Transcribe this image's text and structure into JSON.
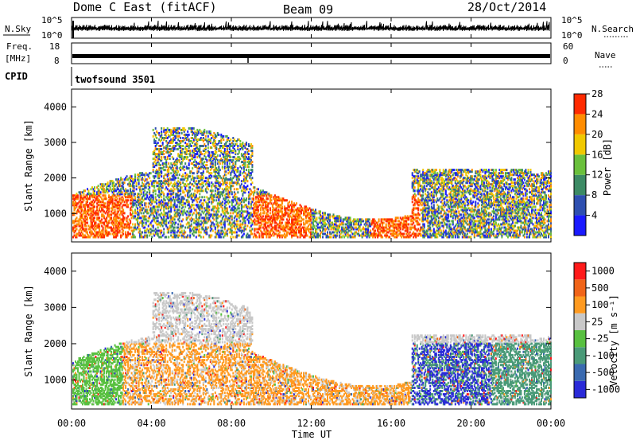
{
  "header": {
    "title": "Dome C East (fitACF)",
    "beam": "Beam 09",
    "date": "28/Oct/2014"
  },
  "top_panels": {
    "nsky_label": "N.Sky",
    "nsky_ticks": [
      "10^5",
      "10^0"
    ],
    "nsearch_ticks": [
      "10^5",
      "10^0"
    ],
    "nsearch_label": "N.Search",
    "freq_label": "Freq.",
    "freq_unit": "[MHz]",
    "freq_ticks": [
      "18",
      "8"
    ],
    "nave_ticks": [
      "60",
      "0"
    ],
    "nave_label": "Nave",
    "cpid_label": "CPID",
    "cpid_value": "twofsound 3501"
  },
  "chart_data": [
    {
      "type": "heatmap",
      "name": "power",
      "ylabel": "Slant Range [km]",
      "xlabel": "",
      "yticks": [
        1000,
        2000,
        3000,
        4000
      ],
      "ylim": [
        200,
        4500
      ],
      "xlim_hours": [
        0,
        24
      ],
      "colorbar_label": "Power [dB]",
      "colorbar_ticks": [
        "4",
        "8",
        "12",
        "16",
        "20",
        "24",
        "28"
      ],
      "colors": [
        "#1a1aff",
        "#2e4fb0",
        "#3c8a64",
        "#6ac03c",
        "#f0c800",
        "#ff8c00",
        "#ff2a00"
      ]
    },
    {
      "type": "heatmap",
      "name": "velocity",
      "ylabel": "Slant Range [km]",
      "xlabel": "Time UT",
      "yticks": [
        1000,
        2000,
        3000,
        4000
      ],
      "ylim": [
        200,
        4500
      ],
      "xlim_hours": [
        0,
        24
      ],
      "xticks": [
        "00:00",
        "04:00",
        "08:00",
        "12:00",
        "16:00",
        "20:00",
        "00:00"
      ],
      "colorbar_label": "Velocity [m s⁻¹]",
      "colorbar_ticks": [
        "1000",
        "500",
        "100",
        "25",
        "-25",
        "-100",
        "-500",
        "-1000"
      ],
      "colors": [
        "#2a2ad8",
        "#3a6ab0",
        "#4a9a78",
        "#58c040",
        "#c8c8c8",
        "#ff9a20",
        "#f06418",
        "#ff1a1a"
      ]
    }
  ]
}
